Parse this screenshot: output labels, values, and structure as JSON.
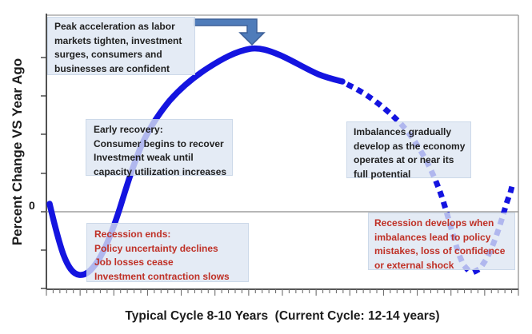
{
  "axes": {
    "y_axis_label": "Percent Change VS Year Ago",
    "x_axis_label": "Typical Cycle 8-10 Years  (Current Cycle: 12-14 years)",
    "zero_tick_label": "0"
  },
  "annotations": {
    "peak": {
      "lines": [
        "Peak acceleration as labor",
        "markets tighten, investment",
        "surges, consumers and",
        "businesses are confident"
      ],
      "text_color_role": "black",
      "connector_icon": "elbow-arrow-down-icon"
    },
    "early_recovery": {
      "lines": [
        "Early recovery:",
        "Consumer begins to recover",
        "Investment weak until",
        "capacity utilization increases"
      ],
      "text_color_role": "black"
    },
    "recession_ends": {
      "lines": [
        "Recession ends:",
        "Policy uncertainty declines",
        "Job losses cease",
        "Investment contraction slows"
      ],
      "text_color_role": "red"
    },
    "imbalances": {
      "lines": [
        "Imbalances gradually",
        "develop as the economy",
        "operates at or near its",
        "full potential"
      ],
      "text_color_role": "black"
    },
    "recession_develops": {
      "lines": [
        "Recession develops when",
        "imbalances lead to policy",
        "mistakes, loss of confidence",
        "or external shock"
      ],
      "text_color_role": "red"
    }
  },
  "chart_data": {
    "type": "line",
    "title": "",
    "xlabel": "Typical Cycle 8-10 Years  (Current Cycle: 12-14 years)",
    "ylabel": "Percent Change VS Year Ago",
    "y_reference_line": 0,
    "series": [
      {
        "name": "business-cycle-curve",
        "style": "solid thick blue, becomes square-dotted (projected) after the post-peak decline",
        "qualitative_points": [
          {
            "stage": "cycle start",
            "value_vs_zero": "slightly below zero, falling"
          },
          {
            "stage": "recession trough",
            "value_vs_zero": "minimum below zero"
          },
          {
            "stage": "early recovery",
            "value_vs_zero": "rising, crosses zero"
          },
          {
            "stage": "peak acceleration",
            "value_vs_zero": "maximum above zero"
          },
          {
            "stage": "imbalances develop",
            "value_vs_zero": "declining while above zero (dotted)"
          },
          {
            "stage": "recession develops",
            "value_vs_zero": "second trough below zero (dotted)"
          },
          {
            "stage": "next recovery",
            "value_vs_zero": "rising back toward zero (dotted)"
          }
        ]
      }
    ],
    "legend": "none",
    "grid": "off"
  },
  "colors": {
    "curve": "#1414e0",
    "annotation_box_rgba": "rgba(221,230,242,0.78)",
    "red_text": "#bf3026",
    "black_text": "#1f1f1f",
    "arrow_fill": "#4f7cba",
    "arrow_stroke": "#3b5e97",
    "axis_dark": "#3f3f3f",
    "axis_light": "#9a9a9a",
    "zero_line": "#8c8c8c"
  }
}
